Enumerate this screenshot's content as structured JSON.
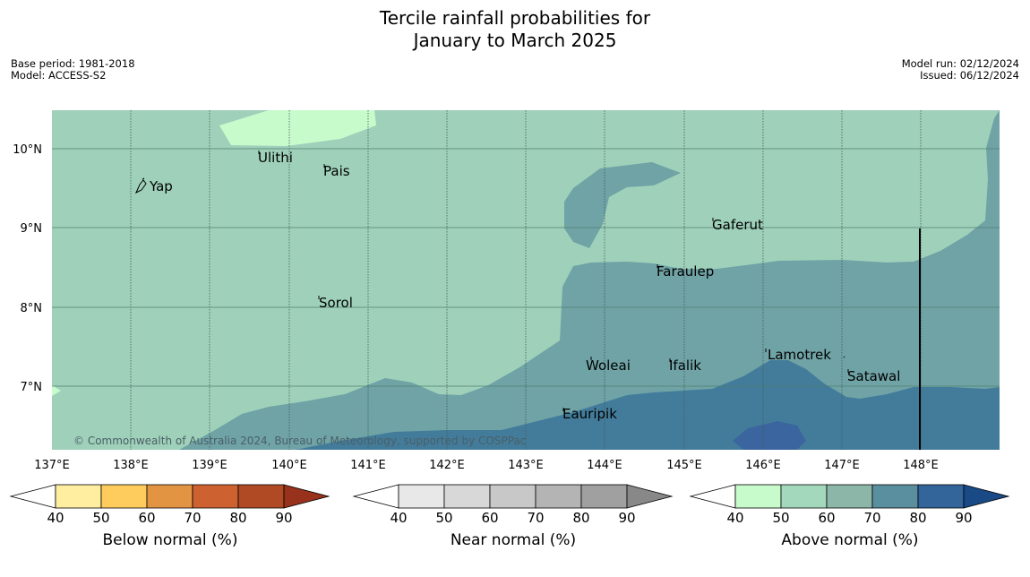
{
  "title": {
    "line1": "Tercile rainfall probabilities for",
    "line2": "January to March 2025"
  },
  "meta": {
    "base_period": "Base period: 1981-2018",
    "model": "Model: ACCESS-S2",
    "model_run": "Model run: 02/12/2024",
    "issued": "Issued: 06/12/2024"
  },
  "map": {
    "lat_labels": [
      "10°N",
      "9°N",
      "8°N",
      "7°N"
    ],
    "lon_labels": [
      "137°E",
      "138°E",
      "139°E",
      "140°E",
      "141°E",
      "142°E",
      "143°E",
      "144°E",
      "145°E",
      "146°E",
      "147°E",
      "148°E"
    ],
    "places": [
      "Yap",
      "Ulithi",
      "Pais",
      "Sorol",
      "Gaferut",
      "Faraulep",
      "Woleai",
      "Ifalik",
      "Lamotrek",
      "Satawal",
      "Eauripik"
    ],
    "credit": "© Commonwealth of Australia 2024, Bureau of Meteorology, supported by COSPPac",
    "colors": {
      "above_50_60": "#9fd1ba",
      "above_70_80": "#6fa3a6",
      "above_80_90": "#437c9b",
      "above_90": "#3b659e",
      "above_40_50": "#c8fbcc"
    }
  },
  "colorbars": [
    {
      "label": "Below normal (%)",
      "ticks": [
        "40",
        "50",
        "60",
        "70",
        "80",
        "90"
      ],
      "colors": [
        "#ffffff",
        "#ffeda0",
        "#fecc5c",
        "#e39442",
        "#cd6230",
        "#b04a24",
        "#98321c"
      ]
    },
    {
      "label": "Near normal (%)",
      "ticks": [
        "40",
        "50",
        "60",
        "70",
        "80",
        "90"
      ],
      "colors": [
        "#ffffff",
        "#e8e8e8",
        "#d8d8d8",
        "#c8c8c8",
        "#b4b4b4",
        "#a0a0a0",
        "#888888"
      ]
    },
    {
      "label": "Above normal (%)",
      "ticks": [
        "40",
        "50",
        "60",
        "70",
        "80",
        "90"
      ],
      "colors": [
        "#ffffff",
        "#c8fbcc",
        "#a4d8bc",
        "#8bb6a8",
        "#5a8fa0",
        "#33649a",
        "#194a86"
      ]
    }
  ]
}
